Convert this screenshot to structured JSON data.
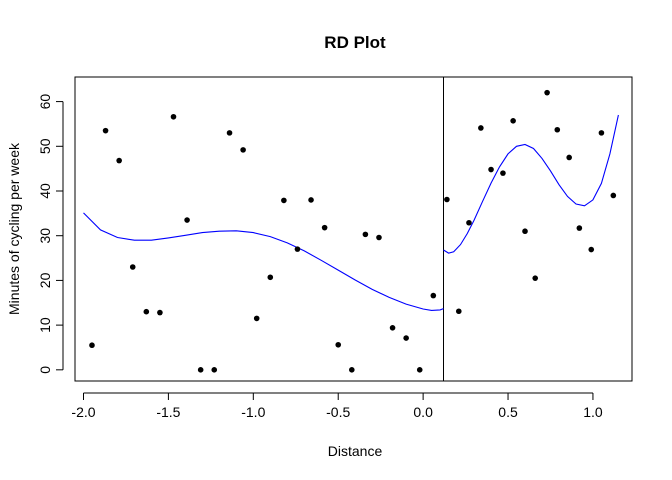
{
  "chart_data": {
    "type": "scatter",
    "title": "RD Plot",
    "xlabel": "Distance",
    "ylabel": "Minutes of cycling per week",
    "xlim": [
      -2.05,
      1.23
    ],
    "ylim": [
      -2.5,
      65.5
    ],
    "x_ticks": [
      -2.0,
      -1.5,
      -1.0,
      -0.5,
      0.0,
      0.5,
      1.0
    ],
    "x_tick_labels": [
      "-2.0",
      "-1.5",
      "-1.0",
      "-0.5",
      "0.0",
      "0.5",
      "1.0"
    ],
    "y_ticks": [
      0,
      10,
      20,
      30,
      40,
      50,
      60
    ],
    "y_tick_labels": [
      "0",
      "10",
      "20",
      "30",
      "40",
      "50",
      "60"
    ],
    "cutoff": 0.12,
    "grid": false,
    "points": [
      {
        "x": -1.95,
        "y": 5.5
      },
      {
        "x": -1.87,
        "y": 53.5
      },
      {
        "x": -1.79,
        "y": 46.8
      },
      {
        "x": -1.71,
        "y": 23.0
      },
      {
        "x": -1.63,
        "y": 13.0
      },
      {
        "x": -1.55,
        "y": 12.8
      },
      {
        "x": -1.47,
        "y": 56.6
      },
      {
        "x": -1.39,
        "y": 33.5
      },
      {
        "x": -1.31,
        "y": 0.0
      },
      {
        "x": -1.23,
        "y": 0.0
      },
      {
        "x": -1.14,
        "y": 53.0
      },
      {
        "x": -1.06,
        "y": 49.2
      },
      {
        "x": -0.98,
        "y": 11.5
      },
      {
        "x": -0.9,
        "y": 20.7
      },
      {
        "x": -0.82,
        "y": 37.9
      },
      {
        "x": -0.74,
        "y": 27.0
      },
      {
        "x": -0.66,
        "y": 38.0
      },
      {
        "x": -0.58,
        "y": 31.8
      },
      {
        "x": -0.5,
        "y": 5.6
      },
      {
        "x": -0.42,
        "y": 0.0
      },
      {
        "x": -0.34,
        "y": 30.3
      },
      {
        "x": -0.26,
        "y": 29.6
      },
      {
        "x": -0.18,
        "y": 9.4
      },
      {
        "x": -0.1,
        "y": 7.1
      },
      {
        "x": -0.02,
        "y": 0.0
      },
      {
        "x": 0.06,
        "y": 16.6
      },
      {
        "x": 0.14,
        "y": 38.1
      },
      {
        "x": 0.21,
        "y": 13.1
      },
      {
        "x": 0.27,
        "y": 32.9
      },
      {
        "x": 0.34,
        "y": 54.1
      },
      {
        "x": 0.4,
        "y": 44.8
      },
      {
        "x": 0.47,
        "y": 44.0
      },
      {
        "x": 0.53,
        "y": 55.7
      },
      {
        "x": 0.6,
        "y": 31.0
      },
      {
        "x": 0.66,
        "y": 20.5
      },
      {
        "x": 0.73,
        "y": 62.0
      },
      {
        "x": 0.79,
        "y": 53.7
      },
      {
        "x": 0.86,
        "y": 47.5
      },
      {
        "x": 0.92,
        "y": 31.7
      },
      {
        "x": 0.99,
        "y": 26.9
      },
      {
        "x": 1.05,
        "y": 53.0
      },
      {
        "x": 1.12,
        "y": 39.0
      }
    ],
    "fit_left": [
      [
        -2.0,
        35.1
      ],
      [
        -1.9,
        31.3
      ],
      [
        -1.8,
        29.6
      ],
      [
        -1.7,
        29.0
      ],
      [
        -1.6,
        29.0
      ],
      [
        -1.5,
        29.5
      ],
      [
        -1.4,
        30.1
      ],
      [
        -1.3,
        30.7
      ],
      [
        -1.2,
        31.0
      ],
      [
        -1.1,
        31.1
      ],
      [
        -1.0,
        30.7
      ],
      [
        -0.9,
        29.8
      ],
      [
        -0.8,
        28.4
      ],
      [
        -0.7,
        26.6
      ],
      [
        -0.6,
        24.5
      ],
      [
        -0.5,
        22.3
      ],
      [
        -0.4,
        20.1
      ],
      [
        -0.3,
        18.0
      ],
      [
        -0.2,
        16.2
      ],
      [
        -0.1,
        14.7
      ],
      [
        0.0,
        13.6
      ],
      [
        0.05,
        13.3
      ],
      [
        0.1,
        13.4
      ],
      [
        0.12,
        13.7
      ]
    ],
    "fit_right": [
      [
        0.12,
        26.8
      ],
      [
        0.15,
        26.1
      ],
      [
        0.18,
        26.4
      ],
      [
        0.22,
        28.0
      ],
      [
        0.26,
        30.5
      ],
      [
        0.3,
        33.5
      ],
      [
        0.35,
        37.7
      ],
      [
        0.4,
        41.8
      ],
      [
        0.45,
        45.4
      ],
      [
        0.5,
        48.3
      ],
      [
        0.55,
        50.0
      ],
      [
        0.6,
        50.4
      ],
      [
        0.65,
        49.5
      ],
      [
        0.7,
        47.3
      ],
      [
        0.75,
        44.5
      ],
      [
        0.8,
        41.4
      ],
      [
        0.85,
        38.8
      ],
      [
        0.9,
        37.1
      ],
      [
        0.95,
        36.7
      ],
      [
        1.0,
        38.0
      ],
      [
        1.05,
        41.7
      ],
      [
        1.1,
        48.3
      ],
      [
        1.15,
        57.0
      ]
    ],
    "colors": {
      "points": "#000000",
      "fit": "#0000ff",
      "cutoff": "#000000"
    }
  }
}
